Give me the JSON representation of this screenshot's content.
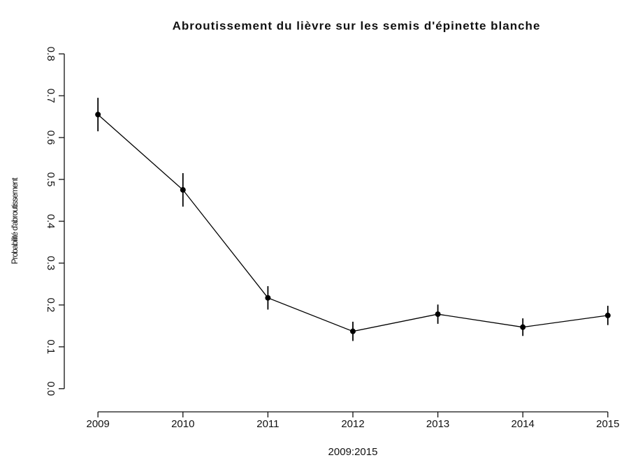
{
  "chart_data": {
    "type": "line",
    "title": "Abroutissement du lièvre sur les semis d'épinette blanche",
    "xlabel": "2009:2015",
    "ylabel": "Probabilité d'abroutissement",
    "x": [
      2009,
      2010,
      2011,
      2012,
      2013,
      2014,
      2015
    ],
    "series": [
      {
        "color": "#000000",
        "values": [
          0.655,
          0.475,
          0.217,
          0.137,
          0.178,
          0.147,
          0.175
        ],
        "errors": [
          0.04,
          0.04,
          0.028,
          0.023,
          0.023,
          0.021,
          0.023
        ]
      }
    ],
    "xlim": [
      2008.76,
      2015.24
    ],
    "xticks": [
      2009,
      2010,
      2011,
      2012,
      2013,
      2014,
      2015
    ],
    "ylim": [
      -0.032,
      0.832
    ],
    "yticks": [
      {
        "value": 0,
        "label": "0.0"
      },
      0.1,
      0.2,
      0.3,
      0.4,
      0.5,
      0.6,
      0.7,
      0.8
    ],
    "grid": false
  }
}
